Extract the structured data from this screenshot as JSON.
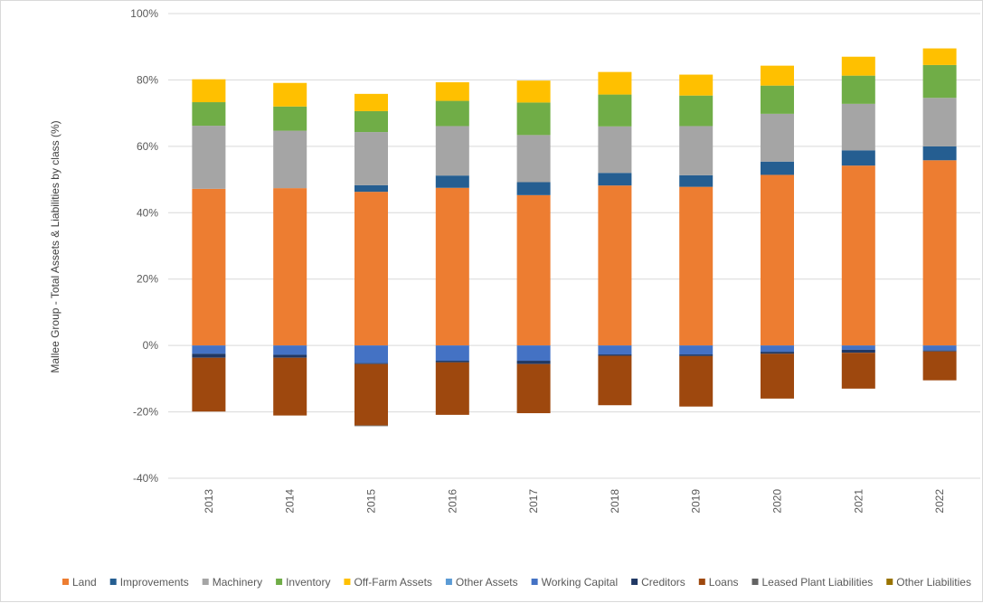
{
  "chart_data": {
    "type": "bar",
    "stacked": true,
    "ylabel": "Mallee Group - Total Assets & Liabilities by class (%)",
    "xlabel": "",
    "ylim": [
      -40,
      100
    ],
    "y_tick_step": 20,
    "y_tick_format": "percent",
    "grid": true,
    "legend_position": "bottom",
    "categories": [
      "2013",
      "2014",
      "2015",
      "2016",
      "2017",
      "2018",
      "2019",
      "2020",
      "2021",
      "2022"
    ],
    "series": [
      {
        "name": "Land",
        "color": "#ED7D31",
        "values": [
          47.2,
          47.4,
          46.3,
          47.5,
          45.3,
          48.2,
          47.8,
          51.4,
          54.2,
          55.8
        ]
      },
      {
        "name": "Improvements",
        "color": "#255E91",
        "values": [
          0,
          0,
          2.0,
          3.7,
          3.9,
          3.8,
          3.5,
          4.0,
          4.6,
          4.2
        ]
      },
      {
        "name": "Machinery",
        "color": "#A5A5A5",
        "values": [
          19.0,
          17.3,
          16.0,
          14.9,
          14.2,
          14.0,
          14.8,
          14.4,
          14.0,
          14.6
        ]
      },
      {
        "name": "Inventory",
        "color": "#70AD47",
        "values": [
          7.1,
          7.3,
          6.3,
          7.6,
          9.8,
          9.6,
          9.2,
          8.5,
          8.5,
          9.9
        ]
      },
      {
        "name": "Off-Farm Assets",
        "color": "#FFC000",
        "values": [
          6.9,
          7.1,
          5.2,
          5.6,
          6.6,
          6.8,
          6.3,
          6.0,
          5.7,
          5.0
        ]
      },
      {
        "name": "Other Assets",
        "color": "#5B9BD5",
        "values": [
          0,
          0,
          0,
          0,
          0,
          0,
          0,
          0,
          0,
          0
        ]
      },
      {
        "name": "Working Capital",
        "color": "#4472C4",
        "values": [
          -2.5,
          -2.8,
          -5.3,
          -4.6,
          -4.6,
          -2.7,
          -2.7,
          -1.9,
          -1.3,
          -1.5
        ]
      },
      {
        "name": "Creditors",
        "color": "#203864",
        "values": [
          -1.2,
          -0.9,
          -0.3,
          -0.5,
          -1.0,
          -0.4,
          -0.5,
          -0.6,
          -0.9,
          -0.3
        ]
      },
      {
        "name": "Loans",
        "color": "#9E480E",
        "values": [
          -16.2,
          -17.4,
          -18.5,
          -15.8,
          -14.8,
          -14.9,
          -15.2,
          -13.5,
          -10.8,
          -8.7
        ]
      },
      {
        "name": "Leased Plant Liabilities",
        "color": "#636363",
        "values": [
          0,
          0,
          -0.2,
          0,
          0,
          0,
          0,
          0,
          0,
          0
        ]
      },
      {
        "name": "Other Liabilities",
        "color": "#997300",
        "values": [
          0,
          0,
          0,
          0,
          0,
          0,
          0,
          0,
          0,
          0
        ]
      }
    ]
  }
}
